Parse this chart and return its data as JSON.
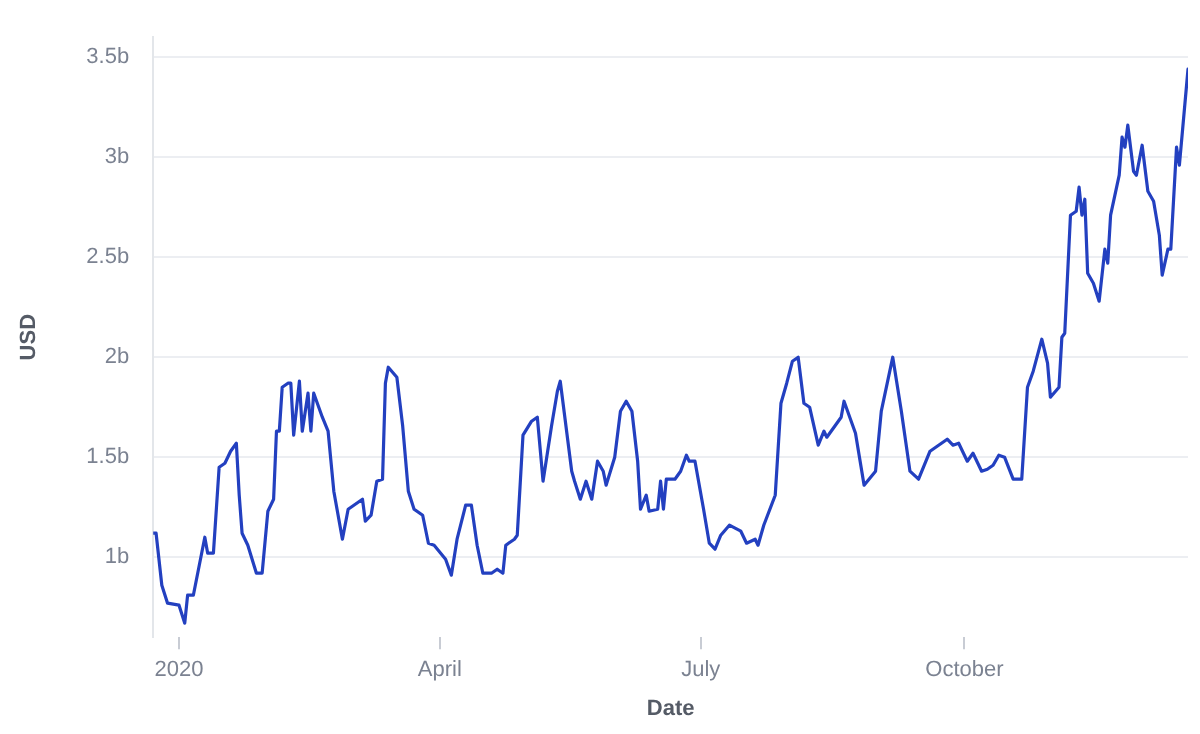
{
  "chart_data": {
    "type": "line",
    "xlabel": "Date",
    "ylabel": "USD",
    "xlim": [
      "2019-12-23",
      "2020-12-18"
    ],
    "xticks": [
      {
        "value": "2020-01-01",
        "label": "2020"
      },
      {
        "value": "2020-04-01",
        "label": "April"
      },
      {
        "value": "2020-07-01",
        "label": "July"
      },
      {
        "value": "2020-10-01",
        "label": "October"
      }
    ],
    "ylim": [
      0.6,
      3.6
    ],
    "yticks": [
      {
        "value": 1,
        "label": "1b"
      },
      {
        "value": 1.5,
        "label": "1.5b"
      },
      {
        "value": 2,
        "label": "2b"
      },
      {
        "value": 2.5,
        "label": "2.5b"
      },
      {
        "value": 3,
        "label": "3b"
      },
      {
        "value": 3.5,
        "label": "3.5b"
      }
    ],
    "grid": "y",
    "legend": false,
    "marker": "none",
    "line_style": "solid",
    "x": [
      "2019-12-23",
      "2019-12-24",
      "2019-12-26",
      "2019-12-28",
      "2020-01-01",
      "2020-01-03",
      "2020-01-04",
      "2020-01-06",
      "2020-01-10",
      "2020-01-11",
      "2020-01-13",
      "2020-01-15",
      "2020-01-17",
      "2020-01-19",
      "2020-01-21",
      "2020-01-22",
      "2020-01-23",
      "2020-01-25",
      "2020-01-28",
      "2020-01-30",
      "2020-02-01",
      "2020-02-03",
      "2020-02-04",
      "2020-02-05",
      "2020-02-06",
      "2020-02-08",
      "2020-02-09",
      "2020-02-10",
      "2020-02-12",
      "2020-02-13",
      "2020-02-15",
      "2020-02-16",
      "2020-02-17",
      "2020-02-20",
      "2020-02-22",
      "2020-02-24",
      "2020-02-27",
      "2020-02-29",
      "2020-03-02",
      "2020-03-05",
      "2020-03-06",
      "2020-03-08",
      "2020-03-10",
      "2020-03-12",
      "2020-03-13",
      "2020-03-14",
      "2020-03-17",
      "2020-03-19",
      "2020-03-21",
      "2020-03-23",
      "2020-03-26",
      "2020-03-28",
      "2020-03-30",
      "2020-04-03",
      "2020-04-05",
      "2020-04-07",
      "2020-04-10",
      "2020-04-12",
      "2020-04-14",
      "2020-04-16",
      "2020-04-19",
      "2020-04-21",
      "2020-04-23",
      "2020-04-24",
      "2020-04-27",
      "2020-04-28",
      "2020-04-30",
      "2020-05-03",
      "2020-05-05",
      "2020-05-07",
      "2020-05-10",
      "2020-05-12",
      "2020-05-13",
      "2020-05-17",
      "2020-05-18",
      "2020-05-20",
      "2020-05-22",
      "2020-05-24",
      "2020-05-26",
      "2020-05-28",
      "2020-05-29",
      "2020-06-01",
      "2020-06-03",
      "2020-06-05",
      "2020-06-07",
      "2020-06-09",
      "2020-06-10",
      "2020-06-12",
      "2020-06-13",
      "2020-06-16",
      "2020-06-17",
      "2020-06-18",
      "2020-06-19",
      "2020-06-22",
      "2020-06-24",
      "2020-06-26",
      "2020-06-27",
      "2020-06-29",
      "2020-07-02",
      "2020-07-04",
      "2020-07-06",
      "2020-07-08",
      "2020-07-11",
      "2020-07-15",
      "2020-07-17",
      "2020-07-20",
      "2020-07-21",
      "2020-07-23",
      "2020-07-27",
      "2020-07-29",
      "2020-07-31",
      "2020-08-02",
      "2020-08-04",
      "2020-08-06",
      "2020-08-08",
      "2020-08-11",
      "2020-08-13",
      "2020-08-14",
      "2020-08-17",
      "2020-08-19",
      "2020-08-20",
      "2020-08-23",
      "2020-08-24",
      "2020-08-27",
      "2020-08-31",
      "2020-09-02",
      "2020-09-06",
      "2020-09-09",
      "2020-09-12",
      "2020-09-15",
      "2020-09-19",
      "2020-09-21",
      "2020-09-25",
      "2020-09-27",
      "2020-09-29",
      "2020-10-02",
      "2020-10-04",
      "2020-10-07",
      "2020-10-09",
      "2020-10-11",
      "2020-10-13",
      "2020-10-15",
      "2020-10-18",
      "2020-10-21",
      "2020-10-23",
      "2020-10-25",
      "2020-10-28",
      "2020-10-30",
      "2020-10-31",
      "2020-11-03",
      "2020-11-04",
      "2020-11-05",
      "2020-11-07",
      "2020-11-09",
      "2020-11-10",
      "2020-11-11",
      "2020-11-12",
      "2020-11-13",
      "2020-11-15",
      "2020-11-17",
      "2020-11-19",
      "2020-11-20",
      "2020-11-21",
      "2020-11-24",
      "2020-11-25",
      "2020-11-26",
      "2020-11-27",
      "2020-11-29",
      "2020-11-30",
      "2020-12-02",
      "2020-12-04",
      "2020-12-06",
      "2020-12-08",
      "2020-12-09",
      "2020-12-11",
      "2020-12-12",
      "2020-12-14",
      "2020-12-15",
      "2020-12-18"
    ],
    "series": [
      {
        "color": "#2340c0",
        "values": [
          1.12,
          1.12,
          0.86,
          0.77,
          0.76,
          0.67,
          0.81,
          0.81,
          1.1,
          1.02,
          1.02,
          1.45,
          1.47,
          1.53,
          1.57,
          1.31,
          1.12,
          1.06,
          0.92,
          0.92,
          1.23,
          1.29,
          1.63,
          1.63,
          1.85,
          1.87,
          1.87,
          1.61,
          1.88,
          1.63,
          1.82,
          1.63,
          1.82,
          1.7,
          1.63,
          1.33,
          1.09,
          1.24,
          1.26,
          1.29,
          1.18,
          1.21,
          1.38,
          1.39,
          1.87,
          1.95,
          1.9,
          1.66,
          1.33,
          1.24,
          1.21,
          1.07,
          1.06,
          0.99,
          0.91,
          1.09,
          1.26,
          1.26,
          1.06,
          0.92,
          0.92,
          0.94,
          0.92,
          1.06,
          1.09,
          1.11,
          1.61,
          1.68,
          1.7,
          1.38,
          1.66,
          1.83,
          1.88,
          1.43,
          1.38,
          1.29,
          1.38,
          1.29,
          1.48,
          1.43,
          1.36,
          1.5,
          1.73,
          1.78,
          1.73,
          1.48,
          1.24,
          1.31,
          1.23,
          1.24,
          1.38,
          1.24,
          1.39,
          1.39,
          1.43,
          1.51,
          1.48,
          1.48,
          1.24,
          1.07,
          1.04,
          1.11,
          1.16,
          1.13,
          1.07,
          1.09,
          1.06,
          1.16,
          1.31,
          1.77,
          1.87,
          1.98,
          2.0,
          1.77,
          1.75,
          1.56,
          1.63,
          1.6,
          1.66,
          1.7,
          1.78,
          1.66,
          1.62,
          1.36,
          1.43,
          1.73,
          2.0,
          1.73,
          1.43,
          1.39,
          1.53,
          1.55,
          1.59,
          1.56,
          1.57,
          1.48,
          1.52,
          1.43,
          1.44,
          1.46,
          1.51,
          1.5,
          1.39,
          1.39,
          1.85,
          1.93,
          2.09,
          1.97,
          1.8,
          1.85,
          2.1,
          2.12,
          2.71,
          2.73,
          2.85,
          2.71,
          2.79,
          2.42,
          2.37,
          2.28,
          2.54,
          2.47,
          2.71,
          2.91,
          3.1,
          3.05,
          3.16,
          2.93,
          2.91,
          3.06,
          2.83,
          2.78,
          2.61,
          2.41,
          2.54,
          2.54,
          3.05,
          2.96,
          3.44
        ]
      }
    ]
  }
}
